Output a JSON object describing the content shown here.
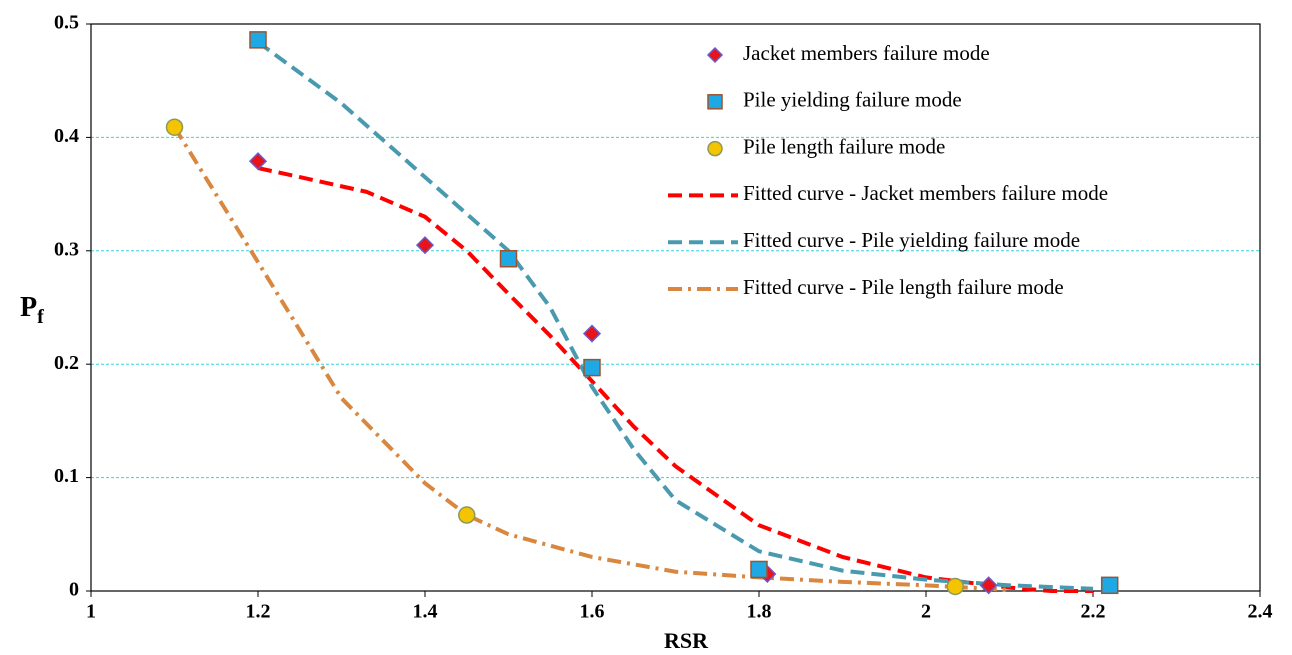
{
  "chart_data": {
    "type": "scatter",
    "xlabel": "RSR",
    "ylabel": {
      "main": "P",
      "sub": "f"
    },
    "xlim": [
      1,
      2.4
    ],
    "xticks": [
      1,
      1.2,
      1.4,
      1.6,
      1.8,
      2,
      2.2,
      2.4
    ],
    "ylim": [
      0,
      0.5
    ],
    "yticks": [
      0,
      0.1,
      0.2,
      0.3,
      0.4,
      0.5
    ],
    "grid": true,
    "grid_color": "#33d6e0",
    "legend": "upper right",
    "series": [
      {
        "name": "Jacket members failure mode",
        "marker": "diamond",
        "color": "#e8141a",
        "edge": "#6a5acd",
        "x": [
          1.2,
          1.4,
          1.6,
          1.81,
          2.075
        ],
        "values": [
          0.379,
          0.305,
          0.227,
          0.015,
          0.005
        ]
      },
      {
        "name": "Pile yielding failure mode",
        "marker": "square",
        "color": "#1ea9e4",
        "edge": "#a0522d",
        "x": [
          1.2,
          1.5,
          1.6,
          1.8,
          2.22
        ],
        "values": [
          0.486,
          0.293,
          0.197,
          0.019,
          0.005
        ]
      },
      {
        "name": "Pile length failure mode",
        "marker": "circle",
        "color": "#f5c400",
        "edge": "#8a9a5b",
        "x": [
          1.1,
          1.45,
          2.035
        ],
        "values": [
          0.409,
          0.067,
          0.004
        ]
      },
      {
        "name": "Fitted curve - Jacket members failure mode",
        "line": "dashed",
        "color": "#ff0000",
        "x": [
          1.2,
          1.25,
          1.33,
          1.4,
          1.45,
          1.5,
          1.55,
          1.6,
          1.65,
          1.7,
          1.8,
          1.9,
          2.0,
          2.1,
          2.15,
          2.2
        ],
        "values": [
          0.373,
          0.365,
          0.352,
          0.33,
          0.3,
          0.262,
          0.225,
          0.185,
          0.145,
          0.11,
          0.058,
          0.03,
          0.012,
          0.003,
          0.0,
          0.0
        ]
      },
      {
        "name": "Fitted curve - Pile yielding failure mode",
        "line": "dashed",
        "color": "#4a9aaf",
        "x": [
          1.2,
          1.3,
          1.4,
          1.5,
          1.55,
          1.6,
          1.65,
          1.7,
          1.8,
          1.9,
          2.0,
          2.1,
          2.2
        ],
        "values": [
          0.484,
          0.43,
          0.365,
          0.3,
          0.25,
          0.18,
          0.125,
          0.08,
          0.035,
          0.018,
          0.01,
          0.005,
          0.002
        ]
      },
      {
        "name": "Fitted curve - Pile length failure mode",
        "line": "dashdot",
        "color": "#d9873f",
        "x": [
          1.1,
          1.2,
          1.3,
          1.4,
          1.45,
          1.5,
          1.6,
          1.7,
          1.8,
          1.9,
          2.0,
          2.1
        ],
        "values": [
          0.409,
          0.29,
          0.17,
          0.095,
          0.067,
          0.05,
          0.03,
          0.017,
          0.012,
          0.008,
          0.005,
          0.001
        ]
      }
    ]
  }
}
